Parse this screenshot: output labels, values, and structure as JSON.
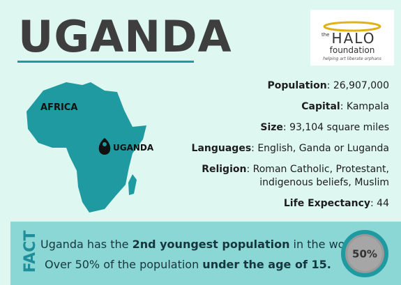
{
  "title": "UGANDA",
  "logo": {
    "the": "the",
    "name": "HALO",
    "foundation": "foundation",
    "tagline": "helping art liberate orphans"
  },
  "map": {
    "region": "AFRICA",
    "country": "UGANDA"
  },
  "facts": [
    {
      "label": "Population",
      "lines": [
        ": 26,907,000"
      ]
    },
    {
      "label": "Capital",
      "lines": [
        ": Kampala"
      ]
    },
    {
      "label": "Size",
      "lines": [
        ": 93,104 square miles"
      ]
    },
    {
      "label": "Languages",
      "lines": [
        ": English, Ganda or Luganda"
      ]
    },
    {
      "label": "Religion",
      "lines": [
        ": Roman Catholic, Protestant,",
        "indigenous beliefs, Muslim"
      ]
    },
    {
      "label": "Life Expectancy",
      "lines": [
        ": 44"
      ]
    }
  ],
  "fact_box": {
    "heading": "FACT",
    "lines": [
      [
        {
          "text": "Uganda has the "
        },
        {
          "text": "2nd youngest population",
          "bold": true
        },
        {
          "text": " in the world."
        }
      ],
      [
        {
          "text": "Over 50% of the population "
        },
        {
          "text": "under the age of 15.",
          "bold": true
        }
      ]
    ],
    "badge": "50%"
  }
}
